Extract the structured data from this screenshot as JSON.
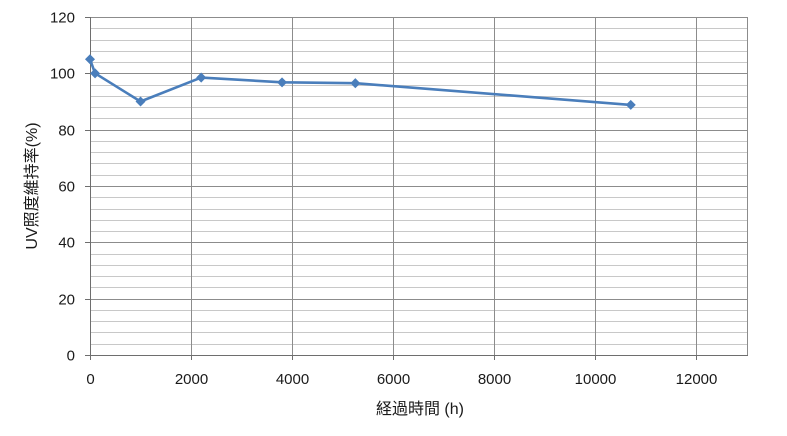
{
  "chart_data": {
    "type": "line",
    "xlabel": "経過時間 (h)",
    "ylabel": "UV照度維持率(%)",
    "xlim": [
      0,
      13000
    ],
    "ylim": [
      0,
      120
    ],
    "x_ticks": [
      0,
      2000,
      4000,
      6000,
      8000,
      10000,
      12000
    ],
    "y_ticks": [
      0,
      20,
      40,
      60,
      80,
      100,
      120
    ],
    "x_major_step": 2000,
    "y_major_step": 20,
    "y_minor_step": 4,
    "grid": true,
    "legend": "none",
    "series": [
      {
        "color": "#4a7ebb",
        "marker": "diamond",
        "points": [
          {
            "x": 0,
            "y": 105
          },
          {
            "x": 100,
            "y": 100
          },
          {
            "x": 1000,
            "y": 90
          },
          {
            "x": 2200,
            "y": 98.5
          },
          {
            "x": 3800,
            "y": 96.8
          },
          {
            "x": 5250,
            "y": 96.5
          },
          {
            "x": 10700,
            "y": 88.8
          }
        ]
      }
    ]
  },
  "colors": {
    "major_grid": "#8c8c8c",
    "minor_grid": "#c8c8c8",
    "axis": "#6e6e6e",
    "series": "#4a7ebb"
  }
}
